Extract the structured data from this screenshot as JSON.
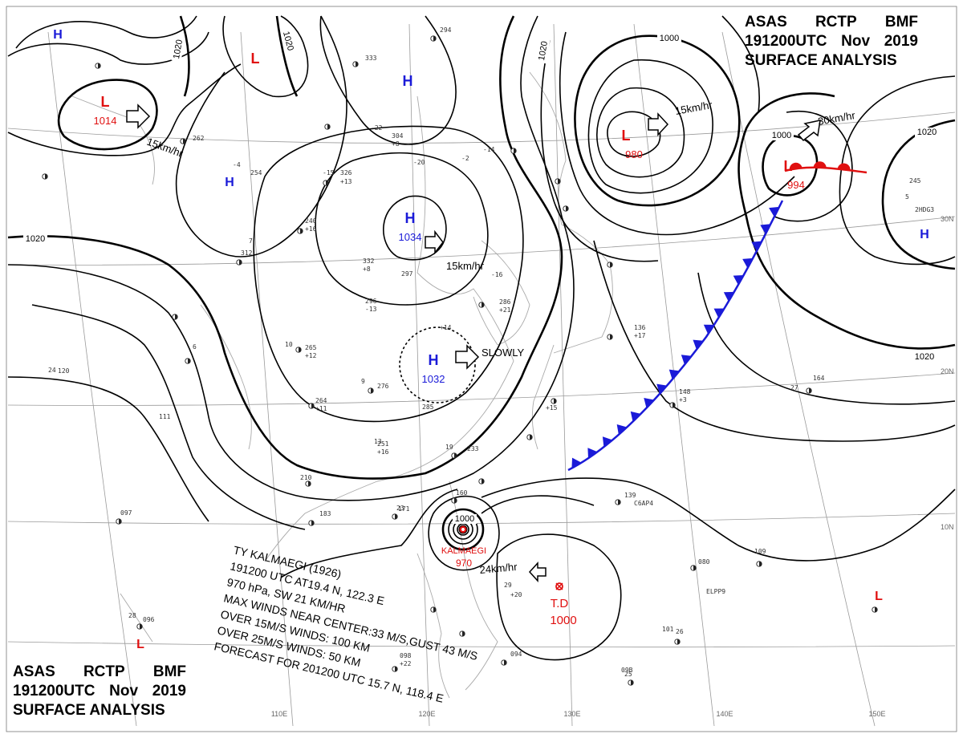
{
  "header": {
    "office_line": [
      "ASAS",
      "RCTP",
      "BMF"
    ],
    "time_line": [
      "191200UTC",
      "Nov",
      "2019"
    ],
    "product": "SURFACE ANALYSIS"
  },
  "isobar_labels": [
    "1020",
    "1020",
    "1020",
    "1020",
    "1000",
    "1000",
    "1000",
    "1020",
    "1020"
  ],
  "pressure_centers": [
    {
      "symbol": "H",
      "value": "",
      "color": "#1a1ad8"
    },
    {
      "symbol": "L",
      "value": "",
      "color": "#e01010"
    },
    {
      "symbol": "L",
      "value": "1014",
      "color": "#e01010"
    },
    {
      "symbol": "H",
      "value": "",
      "color": "#1a1ad8"
    },
    {
      "symbol": "H",
      "value": "",
      "color": "#1a1ad8"
    },
    {
      "symbol": "H",
      "value": "1034",
      "color": "#1a1ad8"
    },
    {
      "symbol": "H",
      "value": "1032",
      "color": "#1a1ad8"
    },
    {
      "symbol": "L",
      "value": "980",
      "color": "#e01010"
    },
    {
      "symbol": "L",
      "value": "994",
      "color": "#e01010"
    },
    {
      "symbol": "H",
      "value": "",
      "color": "#1a1ad8"
    },
    {
      "symbol": "L",
      "value": "",
      "color": "#e01010"
    },
    {
      "symbol": "L",
      "value": "",
      "color": "#e01010"
    }
  ],
  "movements": [
    "15km/hr",
    "15km/hr",
    "SLOWLY",
    "15km/hr",
    "30km/hr",
    "24km/hr"
  ],
  "typhoon": {
    "name_on_map": "KALMAEGI",
    "pressure_on_map": "970",
    "bulletin": [
      "TY KALMAEGI (1926)",
      "191200 UTC AT19.4 N, 122.3 E",
      "970 hPa, SW 21 KM/HR",
      "MAX WINDS NEAR CENTER:33 M/S,GUST 43 M/S",
      "OVER 15M/S WINDS: 100 KM",
      "OVER 25M/S WINDS: 50 KM",
      "FORECAST FOR 201200 UTC 15.7 N, 118.4 E"
    ]
  },
  "tropical_depression": {
    "label": "T.D",
    "pressure": "1000"
  },
  "longitude_labels": [
    "110E",
    "120E",
    "130E",
    "140E",
    "150E"
  ],
  "latitude_labels": [
    "30N",
    "20N",
    "10N"
  ],
  "station_plots": [
    "294",
    "333",
    "-22",
    "304",
    "+8",
    "-15",
    "326",
    "+13",
    "254",
    "240",
    "+16",
    "312",
    "332",
    "+8",
    "296",
    "-13",
    "265",
    "+12",
    "264",
    "+11",
    "276",
    "285",
    "251",
    "+16",
    "233",
    "210",
    "183",
    "171",
    "160",
    "297",
    "-16",
    "286",
    "+21",
    "136",
    "+17",
    "148",
    "+3",
    "164",
    "139",
    "080",
    "+20",
    "109",
    "101",
    "094",
    "098",
    "+22",
    "09B",
    "120",
    "111",
    "097",
    "096",
    "245",
    "262",
    "-2",
    "26",
    "29",
    "27",
    "28",
    "25",
    "24",
    "23",
    "19",
    "13",
    "10",
    "9",
    "7",
    "6",
    "5",
    "C6AP4",
    "ELPP9",
    "2HDG3",
    "-4",
    "-20",
    "-14",
    "+14",
    "+15"
  ],
  "colors": {
    "high": "#1a1ad8",
    "low": "#e01010",
    "cold_front": "#1a1ad8",
    "warm_front": "#e01010",
    "isobar": "#000000",
    "grid": "#9a9a9a"
  }
}
